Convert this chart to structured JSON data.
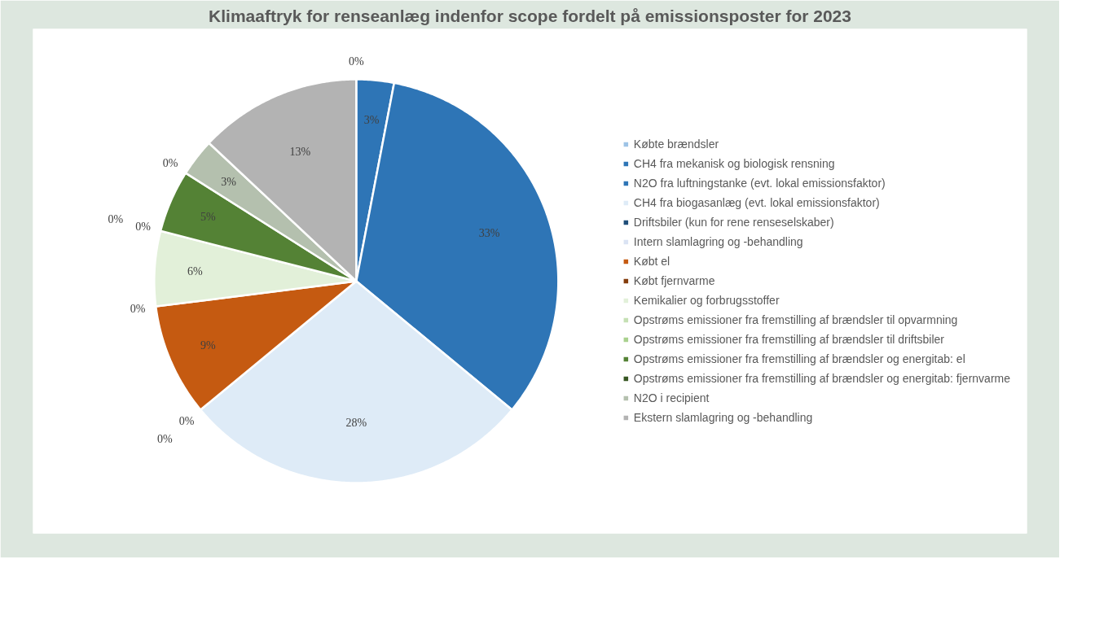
{
  "chart_data": {
    "type": "pie",
    "title": "Klimaaftryk for renseanlæg indenfor scope fordelt på emissionsposter for 2023",
    "categories": [
      "Købte brændsler",
      "CH4 fra mekanisk og biologisk rensning",
      "N2O fra luftningstanke (evt. lokal emissionsfaktor)",
      "CH4 fra biogasanlæg (evt. lokal emissionsfaktor)",
      "Driftsbiler (kun for rene renseselskaber)",
      "Intern slamlagring og -behandling",
      "Købt el",
      "Købt fjernvarme",
      "Kemikalier og forbrugsstoffer",
      "Opstrøms emissioner fra fremstilling af brændsler til opvarmning",
      "Opstrøms emissioner fra fremstilling af brændsler til driftsbiler",
      "Opstrøms emissioner fra fremstilling af brændsler og energitab: el",
      "Opstrøms emissioner fra fremstilling af brændsler og energitab: fjernvarme",
      "N2O i recipient",
      "Ekstern slamlagring og -behandling"
    ],
    "values": [
      0,
      3,
      33,
      28,
      0,
      0,
      9,
      0,
      6,
      0,
      0,
      5,
      0,
      3,
      13
    ],
    "colors": [
      "#9dc3e6",
      "#2e75b6",
      "#2e75b6",
      "#deebf7",
      "#1f4e79",
      "#dae3f3",
      "#c55a11",
      "#843c0c",
      "#e2f0d9",
      "#c5e0b4",
      "#a9d18e",
      "#548235",
      "#375623",
      "#b4c0ae",
      "#b3b3b3"
    ],
    "value_labels": [
      "0%",
      "3%",
      "33%",
      "28%",
      "0%",
      "0%",
      "9%",
      "0%",
      "6%",
      "0%",
      "0%",
      "5%",
      "0%",
      "3%",
      "13%"
    ],
    "legend": "right"
  }
}
